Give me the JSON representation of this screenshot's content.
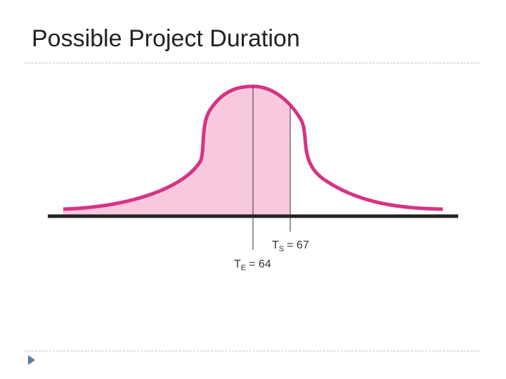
{
  "header": {
    "title": "Possible Project Duration"
  },
  "labels": [
    {
      "symbol": "T",
      "subscript": "S",
      "text": "= 67"
    },
    {
      "symbol": "T",
      "subscript": "E",
      "text": "= 64"
    }
  ]
}
